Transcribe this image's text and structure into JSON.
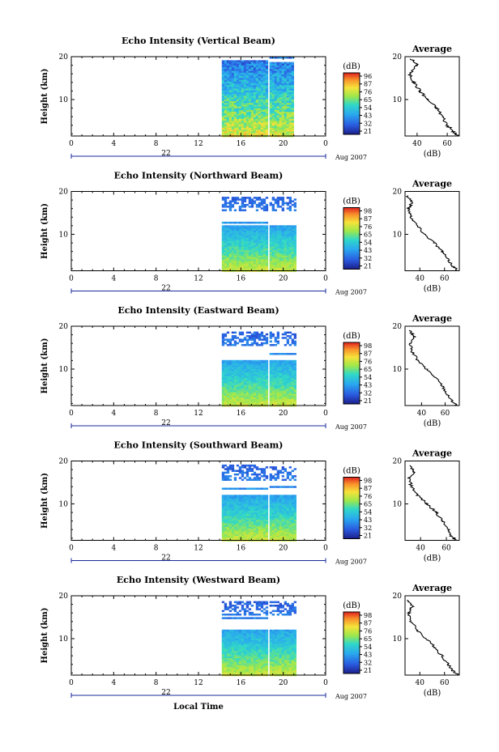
{
  "chart_data": [
    {
      "type": "heatmap",
      "title": "Echo Intensity (Vertical Beam)",
      "ylabel": "Height (km)",
      "xticks": [
        "0",
        "4",
        "8",
        "12",
        "16",
        "20",
        "0"
      ],
      "xlim": [
        0,
        24
      ],
      "ylim": [
        1.5,
        20
      ],
      "yticks": [
        "10",
        "20"
      ],
      "date_label": "22",
      "date_suffix": "Aug 2007",
      "colorbar": {
        "unit": "(dB)",
        "ticks": [
          "96",
          "87",
          "76",
          "65",
          "54",
          "43",
          "32",
          "21"
        ]
      },
      "data_hours": [
        [
          14.2,
          18.4
        ],
        [
          18.7,
          20.9
        ]
      ],
      "profile": {
        "title": "Average",
        "xlabel": "(dB)",
        "xticks": [
          "40",
          "60"
        ],
        "yticks": [
          "10",
          "20"
        ],
        "xlim": [
          32,
          68
        ],
        "height": [
          19.5,
          18,
          16,
          14,
          12,
          10,
          8,
          6,
          4,
          2.5,
          1.5
        ],
        "db": [
          36,
          40,
          35,
          38,
          42,
          47,
          53,
          57,
          60,
          64,
          67
        ]
      }
    },
    {
      "type": "heatmap",
      "title": "Echo Intensity (Northward Beam)",
      "ylabel": "Height (km)",
      "xticks": [
        "0",
        "4",
        "8",
        "12",
        "16",
        "20",
        "0"
      ],
      "xlim": [
        0,
        24
      ],
      "ylim": [
        1.5,
        20
      ],
      "yticks": [
        "10",
        "20"
      ],
      "date_label": "22",
      "date_suffix": "Aug 2007",
      "colorbar": {
        "unit": "(dB)",
        "ticks": [
          "98",
          "87",
          "76",
          "65",
          "54",
          "43",
          "32",
          "21"
        ]
      },
      "data_hours": [
        [
          14.2,
          18.4
        ],
        [
          18.7,
          21.0
        ]
      ],
      "profile": {
        "title": "Average",
        "xlabel": "(dB)",
        "xticks": [
          "40",
          "60"
        ],
        "yticks": [
          "10",
          "20"
        ],
        "xlim": [
          28,
          72
        ],
        "height": [
          19,
          17.5,
          16,
          14,
          12,
          10,
          8,
          6,
          4,
          2.5,
          1.5
        ],
        "db": [
          30,
          34,
          31,
          33,
          38,
          44,
          52,
          58,
          63,
          67,
          71
        ]
      }
    },
    {
      "type": "heatmap",
      "title": "Echo Intensity (Eastward Beam)",
      "ylabel": "Height (km)",
      "xticks": [
        "0",
        "4",
        "8",
        "12",
        "16",
        "20",
        "0"
      ],
      "xlim": [
        0,
        24
      ],
      "ylim": [
        1.5,
        20
      ],
      "yticks": [
        "10",
        "20"
      ],
      "date_label": "22",
      "date_suffix": "Aug 2007",
      "colorbar": {
        "unit": "(dB)",
        "ticks": [
          "98",
          "87",
          "76",
          "65",
          "54",
          "43",
          "32",
          "21"
        ]
      },
      "data_hours": [
        [
          14.2,
          18.4
        ],
        [
          18.7,
          21.0
        ]
      ],
      "profile": {
        "title": "Average",
        "xlabel": "(dB)",
        "xticks": [
          "40",
          "60"
        ],
        "yticks": [
          "10",
          "20"
        ],
        "xlim": [
          26,
          72
        ],
        "height": [
          19,
          17.5,
          16,
          14,
          12,
          10,
          8,
          6,
          4,
          2.5,
          1.5
        ],
        "db": [
          30,
          34,
          30,
          32,
          37,
          44,
          52,
          58,
          62,
          66,
          70
        ]
      }
    },
    {
      "type": "heatmap",
      "title": "Echo Intensity (Southward Beam)",
      "ylabel": "Height (km)",
      "xticks": [
        "0",
        "4",
        "8",
        "12",
        "16",
        "20",
        "0"
      ],
      "xlim": [
        0,
        24
      ],
      "ylim": [
        1.5,
        20
      ],
      "yticks": [
        "10",
        "20"
      ],
      "date_label": "22",
      "date_suffix": "Aug 2007",
      "colorbar": {
        "unit": "(dB)",
        "ticks": [
          "98",
          "87",
          "76",
          "65",
          "54",
          "43",
          "32",
          "21"
        ]
      },
      "data_hours": [
        [
          14.2,
          18.4
        ],
        [
          18.7,
          21.0
        ]
      ],
      "profile": {
        "title": "Average",
        "xlabel": "(dB)",
        "xticks": [
          "40",
          "60"
        ],
        "yticks": [
          "10",
          "20"
        ],
        "xlim": [
          28,
          70
        ],
        "height": [
          19,
          17.5,
          16,
          14,
          12,
          10,
          8,
          6,
          4,
          2.5,
          1.5
        ],
        "db": [
          31,
          35,
          31,
          33,
          38,
          45,
          52,
          57,
          61,
          64,
          68
        ]
      }
    },
    {
      "type": "heatmap",
      "title": "Echo Intensity (Westward Beam)",
      "ylabel": "Height (km)",
      "xlabel": "Local Time",
      "xticks": [
        "0",
        "4",
        "8",
        "12",
        "16",
        "20",
        "0"
      ],
      "xlim": [
        0,
        24
      ],
      "ylim": [
        1.5,
        20
      ],
      "yticks": [
        "10",
        "20"
      ],
      "date_label": "22",
      "date_suffix": "Aug 2007",
      "colorbar": {
        "unit": "(dB)",
        "ticks": [
          "98",
          "87",
          "76",
          "65",
          "54",
          "43",
          "32",
          "21"
        ]
      },
      "data_hours": [
        [
          14.2,
          18.4
        ],
        [
          18.7,
          21.0
        ]
      ],
      "profile": {
        "title": "Average",
        "xlabel": "(dB)",
        "xticks": [
          "40",
          "60"
        ],
        "yticks": [
          "10",
          "20"
        ],
        "xlim": [
          28,
          72
        ],
        "height": [
          19,
          17.5,
          16,
          14,
          12,
          10,
          8,
          6,
          4,
          2.5,
          1.5
        ],
        "db": [
          30,
          34,
          31,
          33,
          38,
          45,
          52,
          58,
          63,
          67,
          71
        ]
      }
    }
  ]
}
